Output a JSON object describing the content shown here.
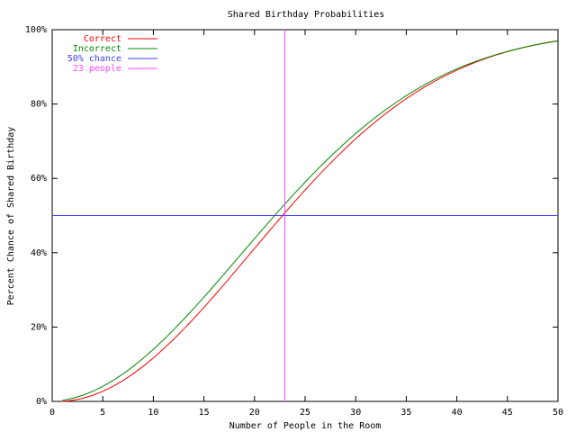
{
  "chart_data": {
    "type": "line",
    "title": "Shared Birthday Probabilities",
    "x_label": "Number of People in the Room",
    "y_label": "Percent Chance of Shared Birthday",
    "x": [
      1,
      2,
      3,
      4,
      5,
      6,
      7,
      8,
      9,
      10,
      11,
      12,
      13,
      14,
      15,
      16,
      17,
      18,
      19,
      20,
      21,
      22,
      23,
      24,
      25,
      26,
      27,
      28,
      29,
      30,
      31,
      32,
      33,
      34,
      35,
      36,
      37,
      38,
      39,
      40,
      41,
      42,
      43,
      44,
      45,
      46,
      47,
      48,
      49,
      50
    ],
    "series": [
      {
        "name": "Correct",
        "color": "#ff0000",
        "values": [
          0,
          0.27,
          0.82,
          1.64,
          2.71,
          4.05,
          5.62,
          7.43,
          9.46,
          11.69,
          14.11,
          16.7,
          19.44,
          22.31,
          25.29,
          28.36,
          31.5,
          34.69,
          37.91,
          41.14,
          44.37,
          47.57,
          50.73,
          53.83,
          56.87,
          59.82,
          62.69,
          65.45,
          68.1,
          70.63,
          73.05,
          75.33,
          77.5,
          79.53,
          81.44,
          83.22,
          84.87,
          86.41,
          87.82,
          89.12,
          90.32,
          91.4,
          92.39,
          93.29,
          94.1,
          94.82,
          95.48,
          96.06,
          96.58,
          97.04
        ]
      },
      {
        "name": "Incorrect",
        "color": "#008800",
        "values": [
          0.27,
          0.82,
          1.63,
          2.71,
          4.03,
          5.6,
          7.39,
          9.4,
          11.61,
          14.01,
          16.56,
          19.26,
          22.09,
          25.02,
          28.05,
          31.14,
          34.28,
          37.45,
          40.62,
          43.79,
          46.94,
          50.05,
          53.1,
          56.09,
          58.99,
          61.82,
          64.55,
          67.17,
          69.68,
          72.08,
          74.36,
          76.51,
          78.54,
          80.45,
          82.24,
          83.91,
          85.46,
          86.91,
          88.24,
          89.46,
          90.58,
          91.6,
          92.54,
          93.39,
          94.15,
          94.85,
          95.47,
          96.03,
          96.53,
          96.97
        ]
      },
      {
        "name": "50% chance",
        "color": "#3f3fff",
        "x": [
          0,
          50
        ],
        "values": [
          50,
          50
        ]
      },
      {
        "name": "23 people",
        "color": "#ff44ff",
        "x": [
          23,
          23
        ],
        "values": [
          0,
          100
        ]
      }
    ],
    "xlim": [
      0,
      50
    ],
    "xticks": [
      0,
      5,
      10,
      15,
      20,
      25,
      30,
      35,
      40,
      45,
      50
    ],
    "ylim": [
      0,
      100
    ],
    "yticks": [
      {
        "value": 0,
        "label": "0%"
      },
      {
        "value": 20,
        "label": "20%"
      },
      {
        "value": 40,
        "label": "40%"
      },
      {
        "value": 60,
        "label": "60%"
      },
      {
        "value": 80,
        "label": "80%"
      },
      {
        "value": 100,
        "label": "100%"
      }
    ],
    "legend": "top-left"
  }
}
